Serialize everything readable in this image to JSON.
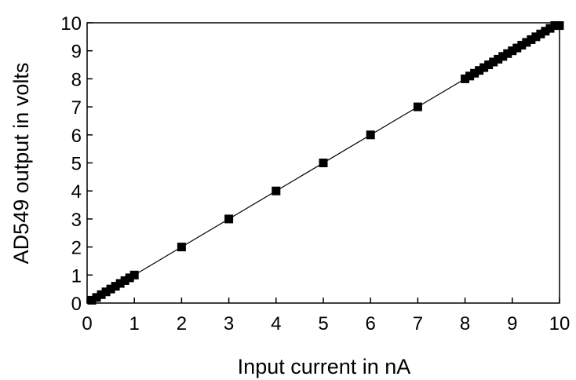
{
  "chart_data": {
    "type": "scatter",
    "title": "",
    "xlabel": "Input current in nA",
    "ylabel": "AD549 output in volts",
    "xlim": [
      0,
      10
    ],
    "ylim": [
      0,
      10
    ],
    "x_ticks": [
      "0",
      "1",
      "2",
      "3",
      "4",
      "5",
      "6",
      "7",
      "8",
      "9",
      "10"
    ],
    "y_ticks": [
      "0",
      "1",
      "2",
      "3",
      "4",
      "5",
      "6",
      "7",
      "8",
      "9",
      "10"
    ],
    "grid": false,
    "legend": "none",
    "marker_color": "#000000",
    "line_color": "#000000",
    "fit_line": {
      "from": [
        0,
        0
      ],
      "to": [
        10,
        10
      ]
    },
    "series": [
      {
        "x": [
          0.1,
          0.2,
          0.3,
          0.4,
          0.5,
          0.6,
          0.7,
          0.8,
          0.9,
          1.0,
          2,
          3,
          4,
          5,
          6,
          7,
          8.0,
          8.1,
          8.2,
          8.3,
          8.4,
          8.5,
          8.6,
          8.7,
          8.8,
          8.9,
          9.0,
          9.1,
          9.2,
          9.3,
          9.4,
          9.5,
          9.6,
          9.7,
          9.8,
          9.9,
          10.0
        ],
        "y": [
          0.1,
          0.2,
          0.3,
          0.4,
          0.5,
          0.6,
          0.7,
          0.8,
          0.9,
          1.0,
          2,
          3,
          4,
          5,
          6,
          7,
          8.0,
          8.1,
          8.2,
          8.3,
          8.4,
          8.5,
          8.6,
          8.7,
          8.8,
          8.9,
          9.0,
          9.1,
          9.2,
          9.3,
          9.4,
          9.5,
          9.6,
          9.7,
          9.8,
          9.9,
          9.9
        ]
      }
    ]
  }
}
